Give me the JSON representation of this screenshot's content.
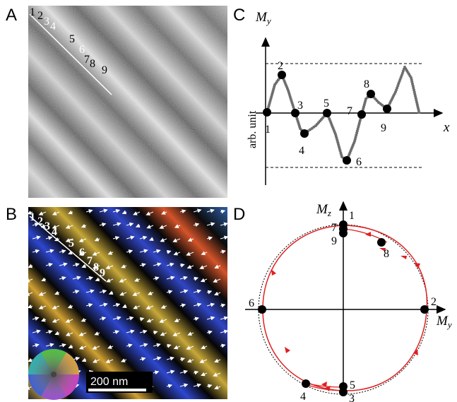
{
  "panels": {
    "a": "A",
    "b": "B",
    "c": "C",
    "d": "D"
  },
  "panel_a": {
    "points": [
      "1",
      "2",
      "3",
      "4",
      "5",
      "6",
      "7",
      "8",
      "9"
    ]
  },
  "panel_b": {
    "points": [
      "1",
      "2",
      "3",
      "4",
      "5",
      "6",
      "7",
      "8",
      "9"
    ],
    "scalebar": "200 nm"
  },
  "panel_c": {
    "y_axis_label": "M",
    "y_axis_sub": "y",
    "x_axis_label": "x",
    "ordinate_label": "arb. unit",
    "points": [
      "1",
      "2",
      "3",
      "4",
      "5",
      "6",
      "7",
      "8",
      "9"
    ]
  },
  "panel_d": {
    "z_label": "M",
    "z_sub": "z",
    "y_label": "M",
    "y_sub": "y",
    "points": [
      "1",
      "2",
      "3",
      "4",
      "5",
      "6",
      "7",
      "8",
      "9"
    ]
  },
  "colors": {
    "trajectory": "#e02020",
    "curve_points": "#6e6e6e",
    "arrows": "#ffffff"
  }
}
